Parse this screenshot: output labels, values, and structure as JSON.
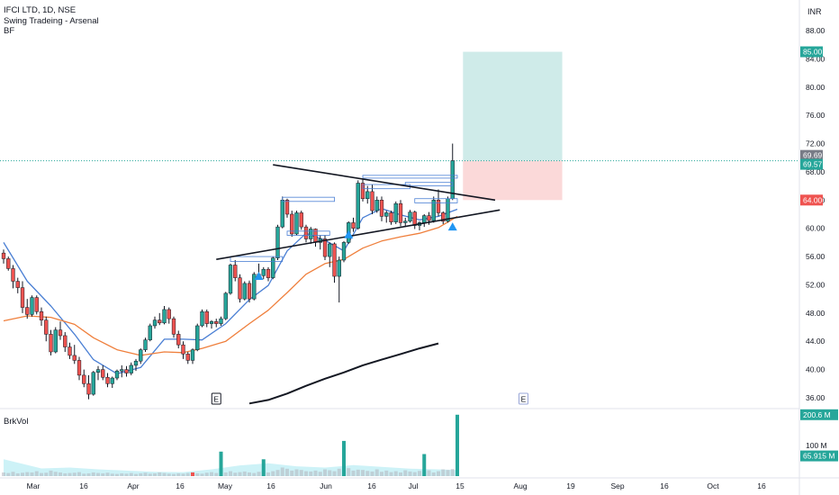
{
  "legend": {
    "symbol_line": "IFCI LTD, 1D, NSE",
    "indicator_line": "Swing Tradeing - Arsenal",
    "sub_line": "BF"
  },
  "currency_label": "INR",
  "volume_label": "BrkVol",
  "earnings_marker": "E",
  "chart_data": [
    {
      "type": "candlestick",
      "title": "IFCI LTD, 1D, NSE",
      "y_ticks": [
        36.0,
        40.0,
        44.0,
        48.0,
        52.0,
        56.0,
        60.0,
        64.0,
        68.0,
        72.0,
        76.0,
        80.0,
        84.0,
        88.0
      ],
      "ylim": [
        34.5,
        90.5
      ],
      "x_tick_labels": [
        "Mar",
        "16",
        "Apr",
        "16",
        "May",
        "16",
        "Jun",
        "16",
        "Jul",
        "15",
        "Aug",
        "19",
        "Sep",
        "16",
        "Oct",
        "16"
      ],
      "grid": false,
      "price_tags": [
        {
          "value": "85.00",
          "color": "#26a69a"
        },
        {
          "value": "69.69",
          "color": "#787b86"
        },
        {
          "value": "69.57",
          "color": "#26a69a"
        },
        {
          "value": "64.00",
          "color": "#ef5350"
        }
      ],
      "position_tool": {
        "entry": 69.57,
        "target": 85.0,
        "stop": 64.0
      },
      "candles": [
        [
          56.5,
          57,
          55,
          55.7
        ],
        [
          55.7,
          56,
          54,
          54.3
        ],
        [
          54.3,
          54.8,
          51.5,
          52.5
        ],
        [
          52.5,
          53,
          50.8,
          51.6
        ],
        [
          51.6,
          52.5,
          48,
          48.8
        ],
        [
          48.8,
          50,
          47.2,
          47.8
        ],
        [
          47.8,
          50.5,
          47.5,
          50.2
        ],
        [
          50.2,
          50.5,
          47.8,
          48.2
        ],
        [
          48.2,
          48.8,
          46.2,
          47
        ],
        [
          47,
          47.5,
          44,
          45
        ],
        [
          45,
          45.6,
          42,
          42.5
        ],
        [
          42.5,
          46,
          42.3,
          45.6
        ],
        [
          45.6,
          46.8,
          44.2,
          44.8
        ],
        [
          44.8,
          45.3,
          42.5,
          43.2
        ],
        [
          43.2,
          43.8,
          41.5,
          42
        ],
        [
          42,
          43.5,
          40.8,
          41.3
        ],
        [
          41.3,
          41.8,
          38.5,
          39.2
        ],
        [
          39.2,
          40,
          37.5,
          38
        ],
        [
          38,
          39.2,
          35.8,
          36.5
        ],
        [
          36.5,
          39.8,
          36.3,
          39.6
        ],
        [
          39.6,
          40.5,
          38.5,
          40
        ],
        [
          40,
          40.6,
          38.5,
          38.9
        ],
        [
          38.9,
          39.5,
          37.5,
          38
        ],
        [
          38,
          39,
          37.4,
          38.8
        ],
        [
          38.8,
          40,
          38.5,
          39.8
        ],
        [
          39.8,
          40.6,
          38.9,
          40
        ],
        [
          40,
          40.5,
          39,
          39.5
        ],
        [
          39.5,
          41,
          39.2,
          40.6
        ],
        [
          40.6,
          41.5,
          39.8,
          41.2
        ],
        [
          41.2,
          43,
          40.8,
          42.8
        ],
        [
          42.8,
          44.5,
          42.5,
          44.2
        ],
        [
          44.2,
          46.5,
          44,
          46.2
        ],
        [
          46.2,
          47.5,
          45.8,
          47
        ],
        [
          47,
          48,
          46.3,
          46.6
        ],
        [
          46.6,
          49,
          46.4,
          48.5
        ],
        [
          48.5,
          48.8,
          46.5,
          47.2
        ],
        [
          47.2,
          47.5,
          44.5,
          45
        ],
        [
          45,
          45.5,
          43,
          43.5
        ],
        [
          43.5,
          44,
          41.5,
          42.2
        ],
        [
          42.2,
          42.5,
          40.8,
          41.3
        ],
        [
          41.3,
          43,
          40.8,
          42.8
        ],
        [
          42.8,
          46.5,
          42.6,
          46.2
        ],
        [
          46.2,
          48.5,
          46,
          48.2
        ],
        [
          48.2,
          48.5,
          46,
          46.5
        ],
        [
          46.5,
          47,
          45.8,
          46.8
        ],
        [
          46.8,
          47.2,
          46,
          46.5
        ],
        [
          46.5,
          47.5,
          46.2,
          47.2
        ],
        [
          47.2,
          51,
          47,
          50.8
        ],
        [
          50.8,
          55,
          50.6,
          54.8
        ],
        [
          54.8,
          55.5,
          52.5,
          53
        ],
        [
          53,
          53.5,
          49.5,
          50
        ],
        [
          50,
          52.5,
          49.8,
          52.2
        ],
        [
          52.2,
          52.6,
          49.5,
          50
        ],
        [
          50,
          53.8,
          49.8,
          53.5
        ],
        [
          53.5,
          55,
          52.8,
          53.3
        ],
        [
          53.3,
          54.5,
          52.8,
          54.2
        ],
        [
          54.2,
          54.5,
          52.5,
          53
        ],
        [
          53,
          56,
          52.8,
          55.8
        ],
        [
          55.8,
          60.5,
          55.5,
          60.2
        ],
        [
          60.2,
          64.5,
          60,
          64
        ],
        [
          64,
          64.2,
          61.5,
          62
        ],
        [
          62,
          62.5,
          58.8,
          59.2
        ],
        [
          59.2,
          62.5,
          59,
          62.2
        ],
        [
          62.2,
          62.5,
          59.8,
          60.2
        ],
        [
          60.2,
          60.5,
          58,
          58.5
        ],
        [
          58.5,
          60.2,
          57.8,
          59.9
        ],
        [
          59.9,
          60,
          57.4,
          58
        ],
        [
          58,
          59,
          57,
          58.5
        ],
        [
          58.5,
          59,
          55.5,
          56
        ],
        [
          56,
          58,
          54.5,
          57.8
        ],
        [
          57.8,
          58,
          52.3,
          53.2
        ],
        [
          53.2,
          56,
          49.5,
          55.5
        ],
        [
          55.5,
          58.2,
          55.2,
          58
        ],
        [
          58,
          61,
          57.8,
          60.8
        ],
        [
          60.8,
          61.5,
          59.5,
          60
        ],
        [
          60,
          66.8,
          59.8,
          66.4
        ],
        [
          66.4,
          67,
          63.8,
          64.2
        ],
        [
          64.2,
          66,
          63.5,
          65.2
        ],
        [
          65.2,
          66.2,
          62,
          62.5
        ],
        [
          62.5,
          64.5,
          62.2,
          64
        ],
        [
          64,
          64.5,
          61,
          61.7
        ],
        [
          61.7,
          62.5,
          60.8,
          62.2
        ],
        [
          62.2,
          62.5,
          60.5,
          60.9
        ],
        [
          60.9,
          63.8,
          60.6,
          63.5
        ],
        [
          63.5,
          64,
          60.3,
          60.8
        ],
        [
          60.8,
          61.5,
          60.2,
          61
        ],
        [
          61,
          62.6,
          60.8,
          62.3
        ],
        [
          62.3,
          62.5,
          59.9,
          60.4
        ],
        [
          60.4,
          61,
          59.7,
          60.8
        ],
        [
          60.8,
          62,
          60.2,
          61.8
        ],
        [
          61.8,
          62.3,
          60.5,
          61.1
        ],
        [
          61.1,
          64.5,
          60.8,
          64
        ],
        [
          64,
          65.5,
          61.7,
          62.2
        ],
        [
          62.2,
          62.4,
          60.6,
          61
        ],
        [
          61,
          64.5,
          60.8,
          64.2
        ],
        [
          64.2,
          72,
          64,
          69.57
        ]
      ],
      "series": [
        {
          "name": "",
          "color": "#4a7fd4",
          "values": [
            [
              0,
              58
            ],
            [
              5,
              52.5
            ],
            [
              10,
              49
            ],
            [
              15,
              45
            ],
            [
              19,
              41.4
            ],
            [
              24,
              39.4
            ],
            [
              29,
              40.3
            ],
            [
              34,
              44.3
            ],
            [
              38,
              44.3
            ],
            [
              42,
              44.2
            ],
            [
              47,
              46.5
            ],
            [
              52,
              49.9
            ],
            [
              56,
              51.9
            ],
            [
              60,
              56.8
            ],
            [
              64,
              59.3
            ],
            [
              68,
              58.3
            ],
            [
              72,
              56.8
            ],
            [
              76,
              61.5
            ],
            [
              80,
              62.8
            ],
            [
              84,
              61.9
            ],
            [
              88,
              61.2
            ],
            [
              92,
              61.7
            ],
            [
              96,
              62.7
            ]
          ]
        },
        {
          "name": "",
          "color": "#ef7f3c",
          "values": [
            [
              0,
              46.9
            ],
            [
              5,
              47.6
            ],
            [
              10,
              47.4
            ],
            [
              15,
              46.4
            ],
            [
              19,
              44.5
            ],
            [
              24,
              42.8
            ],
            [
              29,
              42
            ],
            [
              34,
              42.5
            ],
            [
              38,
              42.4
            ],
            [
              42,
              43
            ],
            [
              47,
              44
            ],
            [
              52,
              46.5
            ],
            [
              56,
              48.4
            ],
            [
              60,
              50.9
            ],
            [
              64,
              53.5
            ],
            [
              68,
              55
            ],
            [
              72,
              55.6
            ],
            [
              76,
              57.2
            ],
            [
              80,
              58.2
            ],
            [
              84,
              58.8
            ],
            [
              88,
              59.3
            ],
            [
              92,
              60.1
            ],
            [
              96,
              61.7
            ]
          ]
        },
        {
          "name": "",
          "color": "#131722",
          "values": [
            [
              52,
              35.2
            ],
            [
              56,
              35.7
            ],
            [
              60,
              36.6
            ],
            [
              64,
              37.7
            ],
            [
              68,
              38.7
            ],
            [
              72,
              39.6
            ],
            [
              76,
              40.6
            ],
            [
              80,
              41.4
            ],
            [
              84,
              42.2
            ],
            [
              88,
              43
            ],
            [
              92,
              43.7
            ]
          ]
        }
      ],
      "trendlines": [
        {
          "from": [
            57,
            69
          ],
          "to": [
            104,
            64
          ]
        },
        {
          "from": [
            45,
            55.6
          ],
          "to": [
            105,
            62.6
          ]
        }
      ],
      "signals": [
        54,
        73,
        95
      ],
      "earnings_at": [
        45,
        110
      ]
    },
    {
      "type": "bar",
      "title": "BrkVol",
      "y_ticks": [
        "100 M"
      ],
      "ylim": [
        0,
        220
      ],
      "price_tags": [
        {
          "value": "200.6 M",
          "color": "#26a69a"
        },
        {
          "value": "65.915 M",
          "color": "#26a69a"
        }
      ],
      "highlight_bars": [
        {
          "index": 40,
          "value": 12,
          "color": "#ef5350"
        },
        {
          "index": 46,
          "value": 80,
          "color": "#26a69a"
        },
        {
          "index": 55,
          "value": 55,
          "color": "#26a69a"
        },
        {
          "index": 72,
          "value": 115,
          "color": "#26a69a"
        },
        {
          "index": 89,
          "value": 72,
          "color": "#26a69a"
        },
        {
          "index": 96,
          "value": 200.6,
          "color": "#26a69a"
        }
      ],
      "avg_area": [
        [
          0,
          55
        ],
        [
          4,
          40
        ],
        [
          8,
          25
        ],
        [
          14,
          28
        ],
        [
          20,
          22
        ],
        [
          26,
          18
        ],
        [
          32,
          14
        ],
        [
          38,
          13
        ],
        [
          44,
          22
        ],
        [
          50,
          35
        ],
        [
          56,
          42
        ],
        [
          62,
          32
        ],
        [
          68,
          28
        ],
        [
          74,
          36
        ],
        [
          80,
          30
        ],
        [
          86,
          24
        ],
        [
          92,
          22
        ],
        [
          96,
          20
        ]
      ],
      "base_volumes": [
        12,
        10,
        14,
        9,
        11,
        13,
        12,
        16,
        10,
        11,
        18,
        14,
        12,
        9,
        10,
        11,
        13,
        8,
        9,
        12,
        10,
        9,
        11,
        8,
        7,
        9,
        8,
        10,
        7,
        9,
        11,
        8,
        9,
        12,
        10,
        8,
        7,
        9,
        8,
        10,
        12,
        9,
        8,
        11,
        13,
        10,
        14,
        12,
        16,
        11,
        13,
        15,
        12,
        10,
        14,
        18,
        12,
        16,
        20,
        28,
        24,
        18,
        22,
        20,
        16,
        15,
        18,
        14,
        22,
        19,
        16,
        24,
        20,
        26,
        18,
        21,
        20,
        17,
        15,
        22,
        14,
        18,
        13,
        16,
        12,
        19,
        15,
        13,
        17,
        14,
        19,
        12,
        16,
        22,
        20,
        23,
        18
      ]
    }
  ]
}
